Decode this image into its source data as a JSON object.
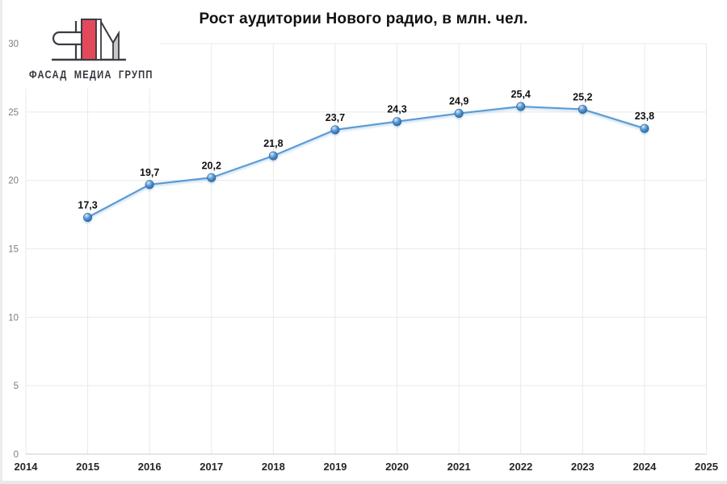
{
  "page": {
    "background": "#ffffff",
    "edge_color": "#ececec"
  },
  "logo": {
    "text": "ФАСАД МЕДИА ГРУПП",
    "mark_red": "#e24a5c",
    "mark_gray": "#c8c8c8",
    "mark_outline": "#3b3b43"
  },
  "chart_data": {
    "type": "line",
    "title": "Рост аудитории Нового радио, в млн. чел.",
    "x": [
      2015,
      2016,
      2017,
      2018,
      2019,
      2020,
      2021,
      2022,
      2023,
      2024
    ],
    "values": [
      17.3,
      19.7,
      20.2,
      21.8,
      23.7,
      24.3,
      24.9,
      25.4,
      25.2,
      23.8
    ],
    "point_labels": [
      "17,3",
      "19,7",
      "20,2",
      "21,8",
      "23,7",
      "24,3",
      "24,9",
      "25,4",
      "25,2",
      "23,8"
    ],
    "x_axis_ticks": [
      2014,
      2015,
      2016,
      2017,
      2018,
      2019,
      2020,
      2021,
      2022,
      2023,
      2024,
      2025
    ],
    "y_axis_ticks": [
      0,
      5,
      10,
      15,
      20,
      25,
      30
    ],
    "xlim": [
      2014,
      2025
    ],
    "ylim": [
      0,
      30
    ],
    "grid": true,
    "legend": "none",
    "xlabel": "",
    "ylabel": "",
    "line_color": "#5B9BD5",
    "marker_color_light": "#d9ebfa",
    "marker_color_mid": "#5b9bd5",
    "marker_color_dark": "#2a6099",
    "data_label_color": "#111111",
    "x_tick_color": "#262626",
    "y_tick_color": "#7d7d7d",
    "grid_color": "#e9e9e9",
    "axis_line_color": "#d7d7d7"
  }
}
